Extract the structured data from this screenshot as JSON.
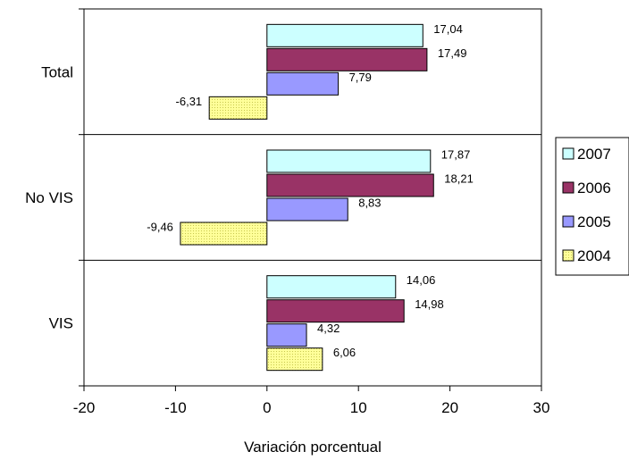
{
  "chart_data": {
    "type": "bar",
    "orientation": "horizontal",
    "categories": [
      "Total",
      "No VIS",
      "VIS"
    ],
    "series": [
      {
        "name": "2007",
        "values": [
          17.04,
          17.87,
          14.06
        ],
        "labels": [
          "17,04",
          "17,87",
          "14,06"
        ],
        "color": "#ccffff",
        "pattern": "solid"
      },
      {
        "name": "2006",
        "values": [
          17.49,
          18.21,
          14.98
        ],
        "labels": [
          "17,49",
          "18,21",
          "14,98"
        ],
        "color": "#993366",
        "pattern": "solid"
      },
      {
        "name": "2005",
        "values": [
          7.79,
          8.83,
          4.32
        ],
        "labels": [
          "7,79",
          "8,83",
          "4,32"
        ],
        "color": "#9999ff",
        "pattern": "solid"
      },
      {
        "name": "2004",
        "values": [
          -6.31,
          -9.46,
          6.06
        ],
        "labels": [
          "-6,31",
          "-9,46",
          "6,06"
        ],
        "color": "#ffff99",
        "pattern": "dotted"
      }
    ],
    "xlabel": "Variación porcentual",
    "xlim": [
      -20,
      30
    ],
    "xticks": [
      -20,
      -10,
      0,
      10,
      20,
      30
    ],
    "xtick_labels": [
      "-20",
      "-10",
      "0",
      "10",
      "20",
      "30"
    ],
    "grid": "category separators only",
    "legend": {
      "position": "right",
      "entries": [
        "2007",
        "2006",
        "2005",
        "2004"
      ]
    }
  }
}
